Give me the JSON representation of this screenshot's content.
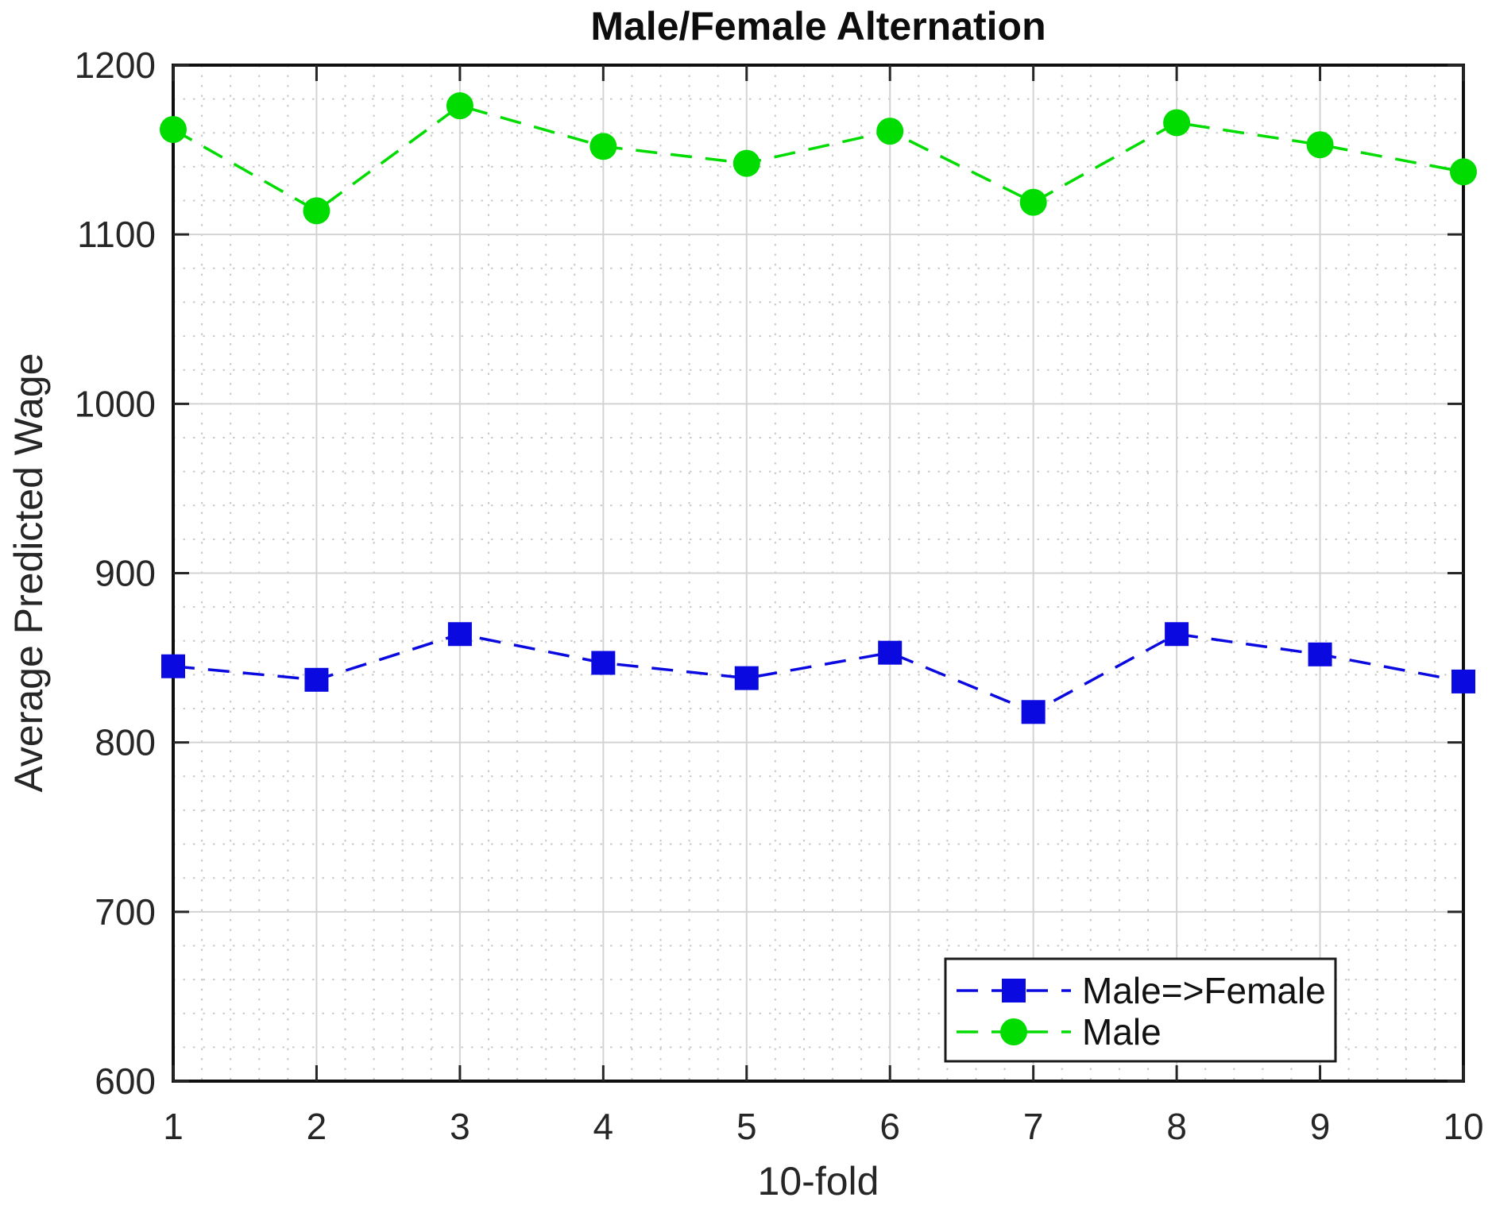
{
  "chart_data": {
    "type": "line",
    "title": "Male/Female Alternation",
    "xlabel": "10-fold",
    "ylabel": "Average Predicted Wage",
    "x": [
      1,
      2,
      3,
      4,
      5,
      6,
      7,
      8,
      9,
      10
    ],
    "series": [
      {
        "name": "Male=>Female",
        "color": "#0a0ae0",
        "marker": "square",
        "line": "dashed",
        "values": [
          845,
          837,
          864,
          847,
          838,
          853,
          818,
          864,
          852,
          836
        ]
      },
      {
        "name": "Male",
        "color": "#00dc00",
        "marker": "circle",
        "line": "dashed",
        "values": [
          1162,
          1114,
          1176,
          1152,
          1142,
          1161,
          1119,
          1166,
          1153,
          1137
        ]
      }
    ],
    "xlim": [
      1,
      10
    ],
    "ylim": [
      600,
      1200
    ],
    "xticks": [
      1,
      2,
      3,
      4,
      5,
      6,
      7,
      8,
      9,
      10
    ],
    "yticks": [
      600,
      700,
      800,
      900,
      1000,
      1100,
      1200
    ],
    "minor_x_step": 0.2,
    "minor_y_step": 20,
    "grid": "on",
    "minor_grid": "on",
    "legend_position": "lower-right",
    "frame_color": "#0f0f0f",
    "tick_color": "#262626",
    "grid_color": "#d3d3d3",
    "minor_grid_color": "#c9c9c9"
  }
}
